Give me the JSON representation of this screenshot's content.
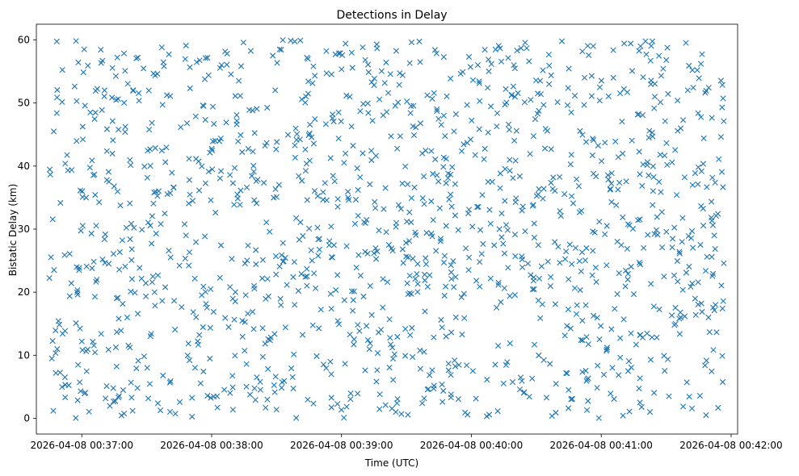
{
  "chart_data": {
    "type": "scatter",
    "title": "Detections in Delay",
    "xlabel": "Time (UTC)",
    "ylabel": "Bistatic Delay (km)",
    "marker": "x",
    "color": "#1f77b4",
    "grid": false,
    "x_ticks": [
      "2026-04-08 00:37:00",
      "2026-04-08 00:38:00",
      "2026-04-08 00:39:00",
      "2026-04-08 00:40:00",
      "2026-04-08 00:41:00",
      "2026-04-08 00:42:00"
    ],
    "xlim": [
      "2026-04-08 00:36:39",
      "2026-04-08 00:42:03"
    ],
    "y_ticks": [
      "0",
      "10",
      "20",
      "30",
      "40",
      "50",
      "60"
    ],
    "ylim": [
      -2.5,
      62.5
    ],
    "series": [
      {
        "x_range": [
          "2026-04-08 00:36:45",
          "2026-04-08 00:41:57"
        ],
        "y_range": [
          0,
          60
        ],
        "count": 1400,
        "distribution": "uniform"
      }
    ]
  }
}
